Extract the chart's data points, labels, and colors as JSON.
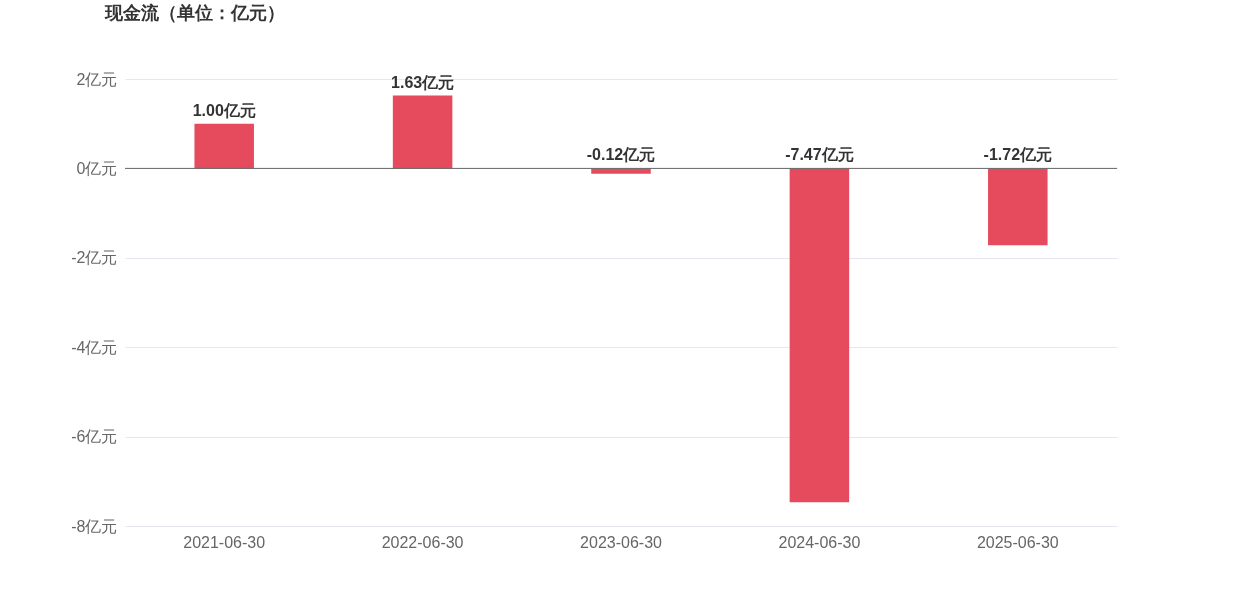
{
  "chart_data": {
    "type": "bar",
    "title": "现金流（单位：亿元）",
    "categories": [
      "2021-06-30",
      "2022-06-30",
      "2023-06-30",
      "2024-06-30",
      "2025-06-30"
    ],
    "values": [
      1.0,
      1.63,
      -0.12,
      -7.47,
      -1.72
    ],
    "value_labels": [
      "1.00亿元",
      "1.63亿元",
      "-0.12亿元",
      "-7.47亿元",
      "-1.72亿元"
    ],
    "color": "#e64b5d",
    "ylim": [
      -8,
      2
    ],
    "yticks": [
      {
        "value": 2,
        "label": "2亿元"
      },
      {
        "value": 0,
        "label": "0亿元"
      },
      {
        "value": -2,
        "label": "-2亿元"
      },
      {
        "value": -4,
        "label": "-4亿元"
      },
      {
        "value": -6,
        "label": "-6亿元"
      },
      {
        "value": -8,
        "label": "-8亿元"
      }
    ],
    "grid": "y"
  }
}
